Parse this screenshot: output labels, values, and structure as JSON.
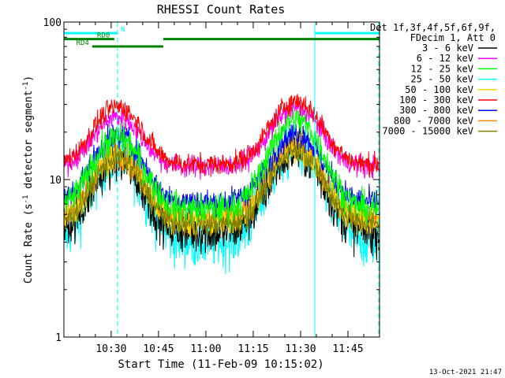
{
  "chart_data": {
    "type": "line",
    "title": "RHESSI Count Rates",
    "xlabel": "Start Time (11-Feb-09 10:15:02)",
    "ylabel_parts": [
      "Count Rate (s",
      "-1",
      " detector segment",
      "-1",
      ")"
    ],
    "y_scale": "log",
    "ylim": [
      1,
      100
    ],
    "y_ticks": [
      {
        "value": 1,
        "label": "1"
      },
      {
        "value": 10,
        "label": "10"
      },
      {
        "value": 100,
        "label": "100"
      }
    ],
    "xlim": [
      "10:15:02",
      "11:55:00"
    ],
    "x_ticks": [
      "10:30",
      "10:45",
      "11:00",
      "11:15",
      "11:30",
      "11:45"
    ],
    "grid": false,
    "legend_position": "right",
    "legend_header": [
      "Det 1f,3f,4f,5f,6f,9f,",
      "FDecim 1, Att 0"
    ],
    "series": [
      {
        "name": "3 - 6 keV",
        "color": "#000000",
        "base": 4.6,
        "peak1": 13.0,
        "peak2": 15.0,
        "noise": 0.1
      },
      {
        "name": "6 - 12 keV",
        "color": "#ff00ff",
        "base": 12.0,
        "peak1": 25.0,
        "peak2": 28.5,
        "noise": 0.05
      },
      {
        "name": "12 - 25 keV",
        "color": "#00ff00",
        "base": 6.5,
        "peak1": 18.5,
        "peak2": 24.0,
        "noise": 0.07
      },
      {
        "name": "25 - 50 keV",
        "color": "#00ffff",
        "base": 4.0,
        "peak1": 13.5,
        "peak2": 15.5,
        "noise": 0.12
      },
      {
        "name": "50 - 100 keV",
        "color": "#ffd700",
        "base": 5.4,
        "peak1": 14.0,
        "peak2": 16.0,
        "noise": 0.07
      },
      {
        "name": "100 - 300 keV",
        "color": "#ff0000",
        "base": 12.5,
        "peak1": 29.0,
        "peak2": 31.5,
        "noise": 0.05
      },
      {
        "name": "300 - 800 keV",
        "color": "#0000ff",
        "base": 7.2,
        "peak1": 19.0,
        "peak2": 19.5,
        "noise": 0.06
      },
      {
        "name": "800 - 7000 keV",
        "color": "#ff8c00",
        "base": 5.6,
        "peak1": 14.5,
        "peak2": 16.5,
        "noise": 0.07
      },
      {
        "name": "7000 - 15000 keV",
        "color": "#808000",
        "base": 5.2,
        "peak1": 13.8,
        "peak2": 15.6,
        "noise": 0.06
      }
    ],
    "annotations": [
      {
        "label": "N",
        "color": "#00ffff",
        "start": "10:15:02",
        "end": "10:32:00",
        "level": 85
      },
      {
        "label": "RD0",
        "color": "#008000",
        "start": "10:15:02",
        "end": "10:31:00",
        "level": 78
      },
      {
        "label": "RD4",
        "color": "#008000",
        "start": "10:24:00",
        "end": "10:46:30",
        "level": 70
      }
    ],
    "attenuator_bar": {
      "color": "#008000",
      "start": "10:46:30",
      "end": "11:55:00",
      "level": 78
    },
    "night_bar": {
      "color": "#00ffff",
      "start": "11:34:30",
      "end": "11:55:00",
      "level": 85
    },
    "vertical_lines": [
      {
        "time": "10:32:00",
        "color": "#00ffff",
        "style": "dashed"
      },
      {
        "time": "11:34:30",
        "color": "#00ffff",
        "style": "solid"
      },
      {
        "time": "11:54:45",
        "color": "#00ffff",
        "style": "dashed"
      }
    ],
    "timestamp": "13-Oct-2021 21:47"
  }
}
